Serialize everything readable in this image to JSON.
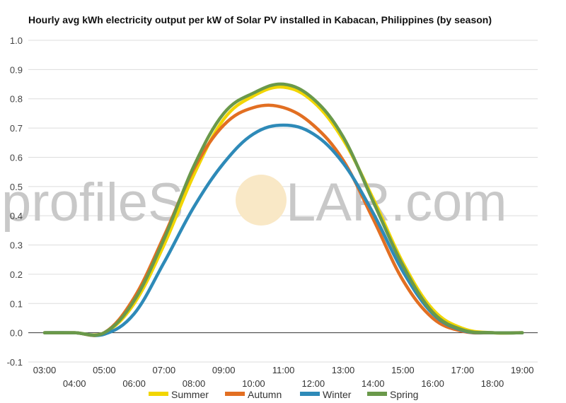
{
  "watermark": {
    "before": "profileS",
    "after": "LAR.com",
    "icon": "sun-icon"
  },
  "chart_data": {
    "type": "line",
    "title": "Hourly avg kWh electricity output per kW of Solar PV installed in Kabacan, Philippines (by season)",
    "xlabel": "",
    "ylabel": "",
    "x": [
      "03:00",
      "04:00",
      "05:00",
      "06:00",
      "07:00",
      "08:00",
      "09:00",
      "10:00",
      "11:00",
      "12:00",
      "13:00",
      "14:00",
      "15:00",
      "16:00",
      "17:00",
      "18:00",
      "19:00"
    ],
    "ylim": [
      -0.1,
      1.0
    ],
    "yticks": [
      "-0.1",
      "0.0",
      "0.1",
      "0.2",
      "0.3",
      "0.4",
      "0.5",
      "0.6",
      "0.7",
      "0.8",
      "0.9",
      "1.0"
    ],
    "grid": true,
    "legend_position": "bottom",
    "series": [
      {
        "name": "Summer",
        "color": "#f2d600",
        "values": [
          0.0,
          0.0,
          0.0,
          0.1,
          0.3,
          0.54,
          0.73,
          0.81,
          0.84,
          0.79,
          0.66,
          0.46,
          0.24,
          0.08,
          0.015,
          0.0,
          0.0
        ]
      },
      {
        "name": "Autumn",
        "color": "#e26f22",
        "values": [
          0.0,
          0.0,
          0.0,
          0.12,
          0.33,
          0.56,
          0.71,
          0.77,
          0.77,
          0.71,
          0.59,
          0.39,
          0.18,
          0.05,
          0.005,
          0.0,
          0.0
        ]
      },
      {
        "name": "Winter",
        "color": "#2e8ab8",
        "values": [
          0.0,
          0.0,
          -0.005,
          0.065,
          0.24,
          0.43,
          0.58,
          0.68,
          0.71,
          0.68,
          0.58,
          0.41,
          0.21,
          0.065,
          0.008,
          0.0,
          0.0
        ]
      },
      {
        "name": "Spring",
        "color": "#6a994a",
        "values": [
          0.0,
          0.0,
          0.0,
          0.11,
          0.32,
          0.57,
          0.75,
          0.82,
          0.85,
          0.8,
          0.67,
          0.45,
          0.23,
          0.07,
          0.01,
          0.0,
          0.0
        ]
      }
    ]
  }
}
